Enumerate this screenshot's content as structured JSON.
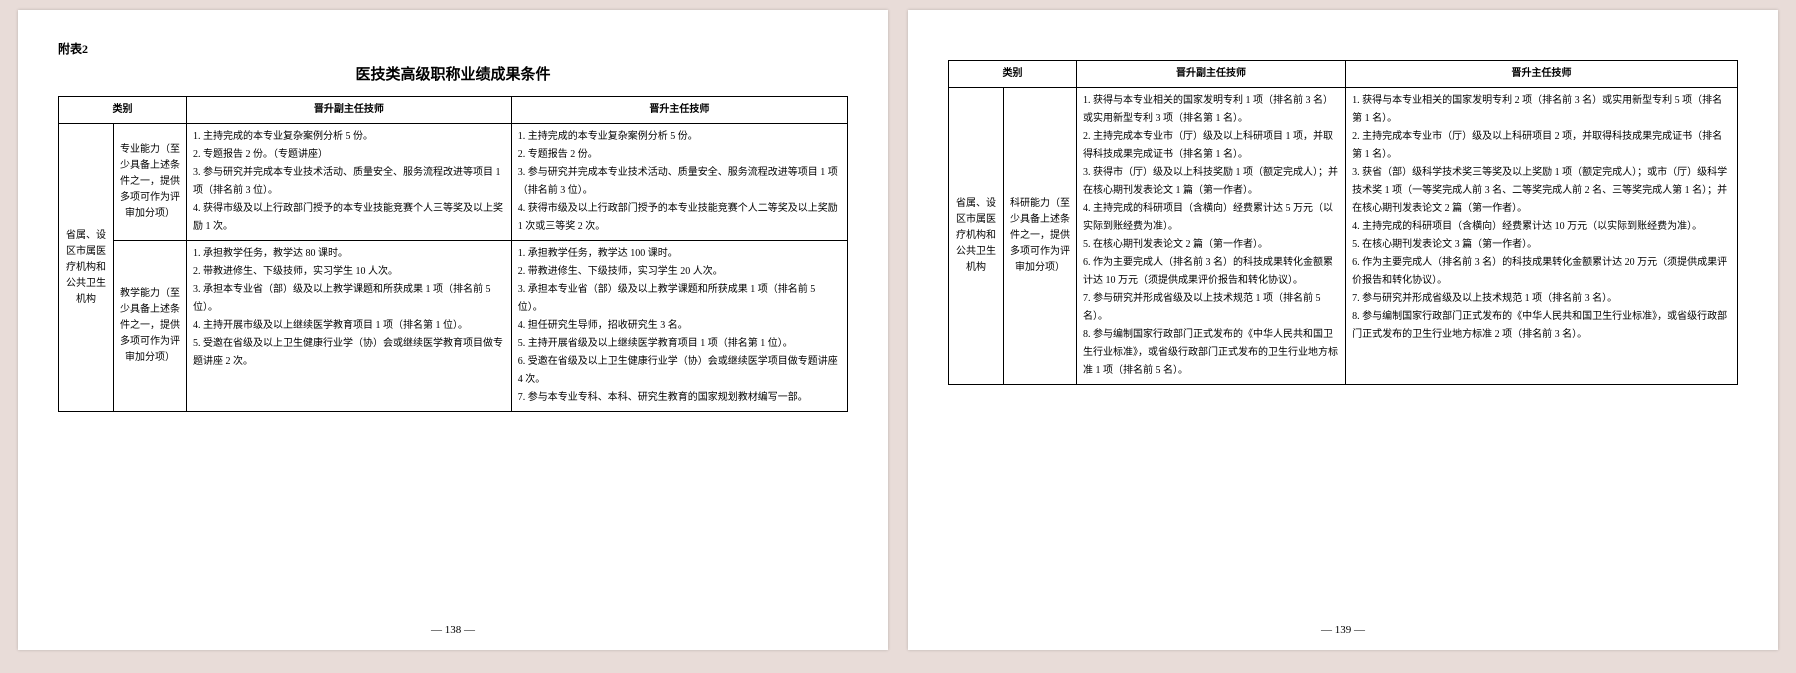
{
  "left": {
    "appendix": "附表2",
    "title": "医技类高级职称业绩成果条件",
    "header": {
      "cat": "类别",
      "colA": "晋升副主任技师",
      "colB": "晋升主任技师"
    },
    "rowgroup_label": "省属、设区市属医疗机构和公共卫生机构",
    "rows": [
      {
        "sublabel": "专业能力（至少具备上述条件之一，提供多项可作为评审加分项）",
        "a": "1. 主持完成的本专业复杂案例分析 5 份。\n2. 专题报告 2 份。（专题讲座）\n3. 参与研究并完成本专业技术活动、质量安全、服务流程改进等项目 1 项（排名前 3 位）。\n4. 获得市级及以上行政部门授予的本专业技能竞赛个人三等奖及以上奖励 1 次。",
        "b": "1. 主持完成的本专业复杂案例分析 5 份。\n2. 专题报告 2 份。\n3. 参与研究并完成本专业技术活动、质量安全、服务流程改进等项目 1 项（排名前 3 位）。\n4. 获得市级及以上行政部门授予的本专业技能竞赛个人二等奖及以上奖励 1 次或三等奖 2 次。"
      },
      {
        "sublabel": "教学能力（至少具备上述条件之一，提供多项可作为评审加分项）",
        "a": "1. 承担教学任务，教学达 80 课时。\n2. 带教进修生、下级技师，实习学生 10 人次。\n3. 承担本专业省（部）级及以上教学课题和所获成果 1 项（排名前 5 位）。\n4. 主持开展市级及以上继续医学教育项目 1 项（排名第 1 位）。\n5. 受邀在省级及以上卫生健康行业学（协）会或继续医学教育项目做专题讲座 2 次。",
        "b": "1. 承担教学任务，教学达 100 课时。\n2. 带教进修生、下级技师，实习学生 20 人次。\n3. 承担本专业省（部）级及以上教学课题和所获成果 1 项（排名前 5 位）。\n4. 担任研究生导师，招收研究生 3 名。\n5. 主持开展省级及以上继续医学教育项目 1 项（排名第 1 位）。\n6. 受邀在省级及以上卫生健康行业学（协）会或继续医学项目做专题讲座 4 次。\n7. 参与本专业专科、本科、研究生教育的国家规划教材编写一部。"
      }
    ],
    "pagenum": "— 138 —"
  },
  "right": {
    "header": {
      "cat": "类别",
      "colA": "晋升副主任技师",
      "colB": "晋升主任技师"
    },
    "rowgroup_label": "省属、设区市属医疗机构和公共卫生机构",
    "row": {
      "sublabel": "科研能力（至少具备上述条件之一，提供多项可作为评审加分项）",
      "a": "1. 获得与本专业相关的国家发明专利 1 项（排名前 3 名）或实用新型专利 3 项（排名第 1 名）。\n2. 主持完成本专业市（厅）级及以上科研项目 1 项，并取得科技成果完成证书（排名第 1 名）。\n3. 获得市（厅）级及以上科技奖励 1 项（额定完成人）；并在核心期刊发表论文 1 篇（第一作者）。\n4. 主持完成的科研项目（含横向）经费累计达 5 万元（以实际到账经费为准）。\n5. 在核心期刊发表论文 2 篇（第一作者）。\n6. 作为主要完成人（排名前 3 名）的科技成果转化金额累计达 10 万元（须提供成果评价报告和转化协议）。\n7. 参与研究并形成省级及以上技术规范 1 项（排名前 5 名）。\n8. 参与编制国家行政部门正式发布的《中华人民共和国卫生行业标准》，或省级行政部门正式发布的卫生行业地方标准 1 项（排名前 5 名）。",
      "b": "1. 获得与本专业相关的国家发明专利 2 项（排名前 3 名）或实用新型专利 5 项（排名第 1 名）。\n2. 主持完成本专业市（厅）级及以上科研项目 2 项，并取得科技成果完成证书（排名第 1 名）。\n3. 获省（部）级科学技术奖三等奖及以上奖励 1 项（额定完成人）；或市（厅）级科学技术奖 1 项（一等奖完成人前 3 名、二等奖完成人前 2 名、三等奖完成人第 1 名）；并在核心期刊发表论文 2 篇（第一作者）。\n4. 主持完成的科研项目（含横向）经费累计达 10 万元（以实际到账经费为准）。\n5. 在核心期刊发表论文 3 篇（第一作者）。\n6. 作为主要完成人（排名前 3 名）的科技成果转化金额累计达 20 万元（须提供成果评价报告和转化协议）。\n7. 参与研究并形成省级及以上技术规范 1 项（排名前 3 名）。\n8. 参与编制国家行政部门正式发布的《中华人民共和国卫生行业标准》，或省级行政部门正式发布的卫生行业地方标准 2 项（排名前 3 名）。"
    },
    "pagenum": "— 139 —"
  }
}
